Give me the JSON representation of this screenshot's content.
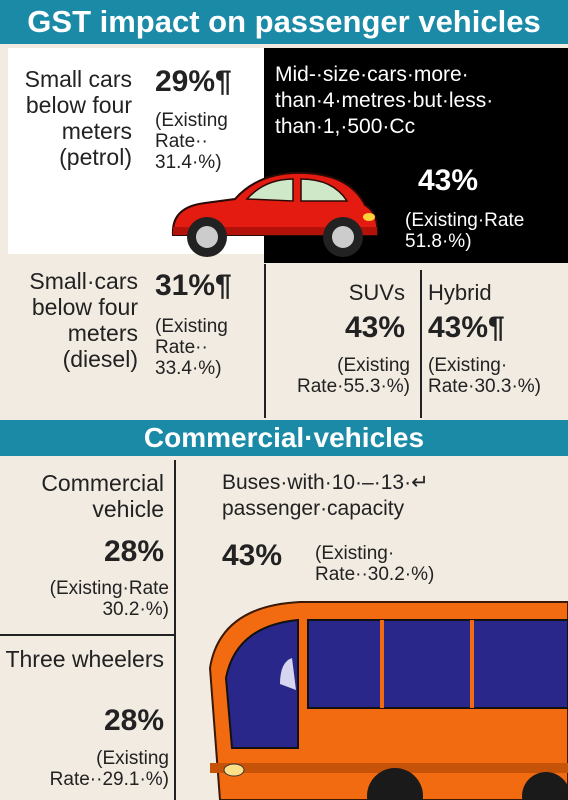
{
  "header": {
    "title": "GST impact on passenger vehicles"
  },
  "petrol": {
    "name": "Small cars below four meters (petrol)",
    "rate": "29%¶",
    "existing": "(Existing Rate·· 31.4·%)"
  },
  "midsize": {
    "name": "Mid-·size·cars·more· than·4·metres·but·less· than·1,·500·Cc",
    "rate": "43%",
    "existing": "(Existing·Rate 51.8·%)"
  },
  "diesel": {
    "name": "Small·cars below four meters (diesel)",
    "rate": "31%¶",
    "existing": "(Existing Rate·· 33.4·%)"
  },
  "suvs": {
    "name": "SUVs",
    "rate": "43%",
    "existing": "(Existing Rate·55.3·%)"
  },
  "hybrid": {
    "name": "Hybrid",
    "rate": "43%¶",
    "existing": "(Existing· Rate·30.3·%)"
  },
  "commercial_header": {
    "title": "Commercial·vehicles"
  },
  "commercial": {
    "name": "Commercial vehicle",
    "rate": "28%",
    "existing": "(Existing·Rate 30.2·%)"
  },
  "buses": {
    "name": "Buses·with·10·–·13·↵ passenger·capacity",
    "rate": "43%",
    "existing": "(Existing· Rate··30.2·%)"
  },
  "three_wheelers": {
    "name": "Three wheelers",
    "rate": "28%",
    "existing": "(Existing Rate··29.1·%)"
  },
  "colors": {
    "header_bg": "#1a8aa7",
    "background": "#f2ebe2",
    "car": "#e31b10",
    "bus_body": "#f26b11",
    "bus_window": "#29288a"
  }
}
